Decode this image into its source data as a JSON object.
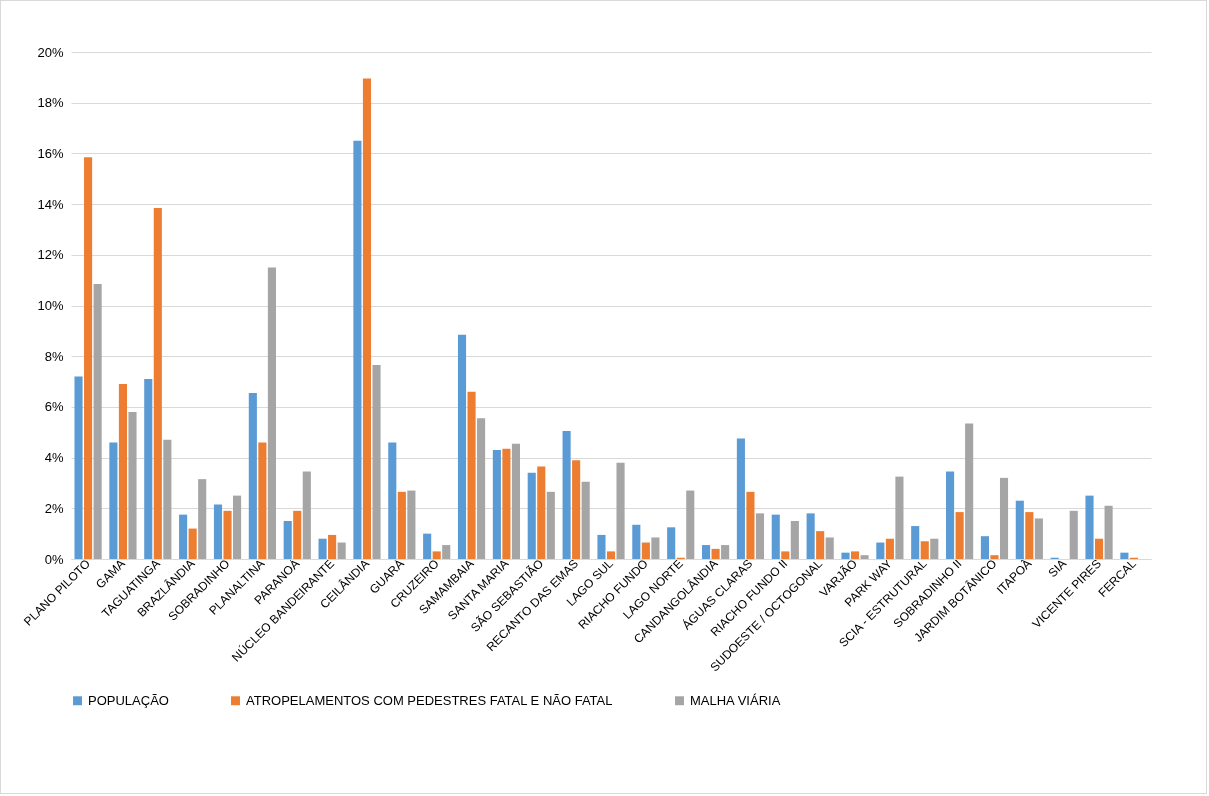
{
  "chart_data": {
    "type": "bar",
    "categories": [
      "PLANO PILOTO",
      "GAMA",
      "TAGUATINGA",
      "BRAZLÂNDIA",
      "SOBRADINHO",
      "PLANALTINA",
      "PARANOÁ",
      "NÚCLEO BANDEIRANTE",
      "CEILÂNDIA",
      "GUARÁ",
      "CRUZEIRO",
      "SAMAMBAIA",
      "SANTA MARIA",
      "SÃO SEBASTIÃO",
      "RECANTO DAS EMAS",
      "LAGO SUL",
      "RIACHO FUNDO",
      "LAGO NORTE",
      "CANDANGOLÂNDIA",
      "ÁGUAS CLARAS",
      "RIACHO FUNDO II",
      "SUDOESTE / OCTOGONAL",
      "VARJÃO",
      "PARK WAY",
      "SCIA - ESTRUTURAL",
      "SOBRADINHO II",
      "JARDIM BOTÂNICO",
      "ITAPOÃ",
      "SIA",
      "VICENTE PIRES",
      "FERCAL"
    ],
    "series": [
      {
        "name": "POPULAÇÃO",
        "color": "#5b9bd5",
        "values": [
          7.2,
          4.6,
          7.1,
          1.75,
          2.15,
          6.55,
          1.5,
          0.8,
          16.5,
          4.6,
          1.0,
          8.85,
          4.3,
          3.4,
          5.05,
          0.95,
          1.35,
          1.25,
          0.55,
          4.75,
          1.75,
          1.8,
          0.25,
          0.65,
          1.3,
          3.45,
          0.9,
          2.3,
          0.05,
          2.5,
          0.25
        ]
      },
      {
        "name": "ATROPELAMENTOS COM PEDESTRES FATAL E NÃO FATAL",
        "color": "#ed7d31",
        "values": [
          15.85,
          6.9,
          13.85,
          1.2,
          1.9,
          4.6,
          1.9,
          0.95,
          18.95,
          2.65,
          0.3,
          6.6,
          4.35,
          3.65,
          3.9,
          0.3,
          0.65,
          0.05,
          0.4,
          2.65,
          0.3,
          1.1,
          0.3,
          0.8,
          0.7,
          1.85,
          0.15,
          1.85,
          0,
          0.8,
          0.05
        ]
      },
      {
        "name": "MALHA VIÁRIA",
        "color": "#a5a5a5",
        "values": [
          10.85,
          5.8,
          4.7,
          3.15,
          2.5,
          11.5,
          3.45,
          0.65,
          7.65,
          2.7,
          0.55,
          5.55,
          4.55,
          2.65,
          3.05,
          3.8,
          0.85,
          2.7,
          0.55,
          1.8,
          1.5,
          0.85,
          0.15,
          3.25,
          0.8,
          5.35,
          3.2,
          1.6,
          1.9,
          2.1,
          0
        ]
      }
    ],
    "ylim": [
      0,
      20
    ],
    "yticks": [
      {
        "value": 0,
        "label": "0%"
      },
      {
        "value": 2,
        "label": "2%"
      },
      {
        "value": 4,
        "label": "4%"
      },
      {
        "value": 6,
        "label": "6%"
      },
      {
        "value": 8,
        "label": "8%"
      },
      {
        "value": 10,
        "label": "10%"
      },
      {
        "value": 12,
        "label": "12%"
      },
      {
        "value": 14,
        "label": "14%"
      },
      {
        "value": 16,
        "label": "16%"
      },
      {
        "value": 18,
        "label": "18%"
      },
      {
        "value": 20,
        "label": "20%"
      }
    ],
    "grid": "y",
    "legend": "bottom"
  }
}
